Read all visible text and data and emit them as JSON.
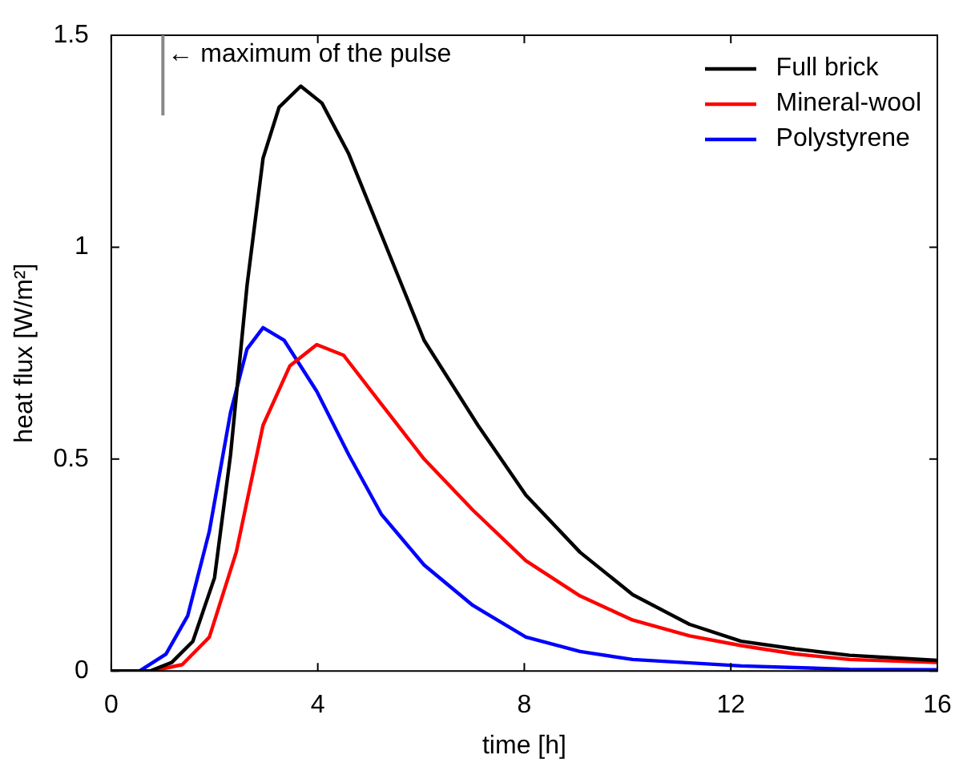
{
  "chart_data": {
    "type": "line",
    "xlabel": "time [h]",
    "ylabel": "heat flux [W/m²]",
    "xlim": [
      0,
      16
    ],
    "ylim": [
      0,
      1.5
    ],
    "xticks": [
      0,
      4,
      8,
      12,
      16
    ],
    "yticks": [
      0,
      0.5,
      1,
      1.5
    ],
    "grid": false,
    "legend": "top right",
    "marker": "none",
    "line_style": "solid",
    "ref_lines": [
      {
        "axis": "x",
        "value": 1,
        "label": "← maximum of the pulse",
        "color": "#888888"
      }
    ],
    "series": [
      {
        "name": "Full brick",
        "color": "#000000",
        "x": [
          0,
          0.75,
          1.17,
          1.58,
          2.0,
          2.31,
          2.63,
          2.94,
          3.25,
          3.67,
          4.08,
          4.6,
          5.23,
          6.06,
          7.1,
          8.03,
          9.08,
          10.1,
          11.2,
          12.2,
          13.25,
          14.3,
          16
        ],
        "values": [
          0,
          0,
          0.02,
          0.07,
          0.22,
          0.51,
          0.91,
          1.21,
          1.33,
          1.38,
          1.34,
          1.22,
          1.03,
          0.78,
          0.58,
          0.415,
          0.28,
          0.18,
          0.11,
          0.07,
          0.052,
          0.037,
          0.025
        ]
      },
      {
        "name": "Mineral-wool",
        "color": "#ff0000",
        "x": [
          0,
          0.8,
          1.375,
          1.9,
          2.42,
          2.94,
          3.46,
          3.98,
          4.5,
          5.23,
          6.06,
          7.0,
          8.03,
          9.08,
          10.1,
          11.2,
          12.2,
          13.25,
          14.3,
          16
        ],
        "values": [
          0,
          0,
          0.015,
          0.08,
          0.28,
          0.58,
          0.72,
          0.77,
          0.745,
          0.63,
          0.5,
          0.38,
          0.26,
          0.177,
          0.12,
          0.083,
          0.06,
          0.04,
          0.027,
          0.02
        ]
      },
      {
        "name": "Polystyrene",
        "color": "#0000ff",
        "x": [
          0,
          0.55,
          1.06,
          1.48,
          1.9,
          2.31,
          2.63,
          2.94,
          3.35,
          3.98,
          4.6,
          5.23,
          6.06,
          7.0,
          8.03,
          9.08,
          10.1,
          12.2,
          14.3,
          16
        ],
        "values": [
          0,
          0,
          0.04,
          0.13,
          0.33,
          0.61,
          0.76,
          0.81,
          0.78,
          0.66,
          0.51,
          0.37,
          0.25,
          0.155,
          0.08,
          0.046,
          0.027,
          0.012,
          0.004,
          0.003
        ]
      }
    ]
  }
}
